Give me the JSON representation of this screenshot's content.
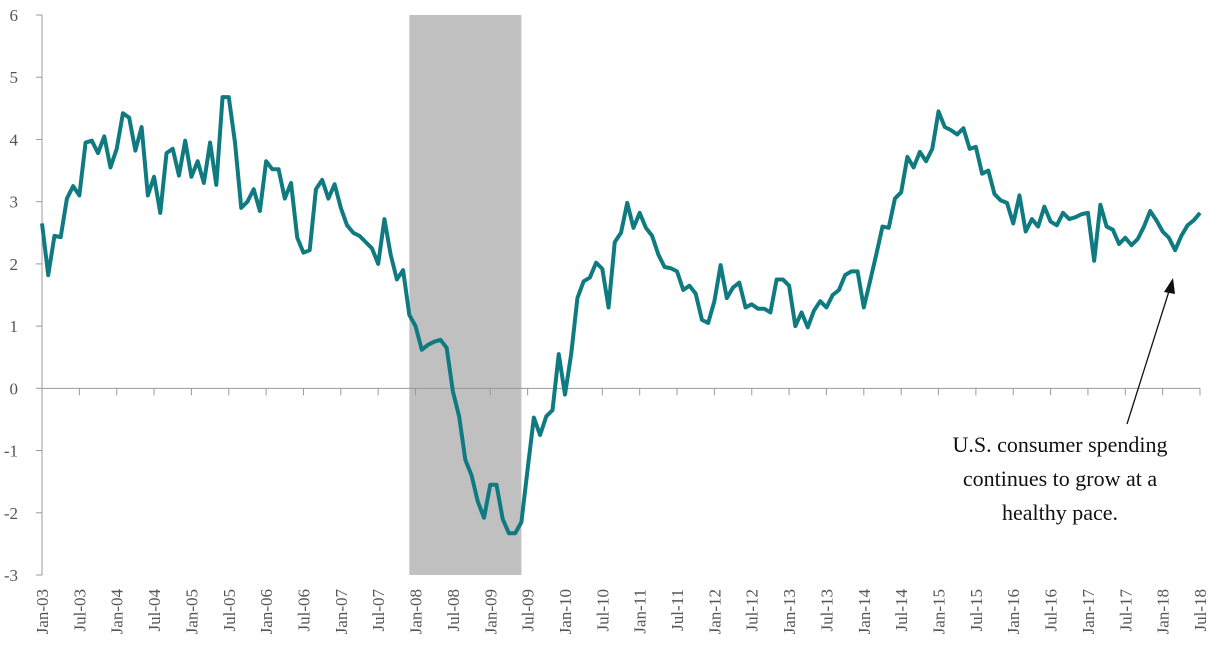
{
  "chart_data": {
    "type": "line",
    "categories": [
      "Jan-03",
      null,
      null,
      null,
      null,
      null,
      "Jul-03",
      null,
      null,
      null,
      null,
      null,
      "Jan-04",
      null,
      null,
      null,
      null,
      null,
      "Jul-04",
      null,
      null,
      null,
      null,
      null,
      "Jan-05",
      null,
      null,
      null,
      null,
      null,
      "Jul-05",
      null,
      null,
      null,
      null,
      null,
      "Jan-06",
      null,
      null,
      null,
      null,
      null,
      "Jul-06",
      null,
      null,
      null,
      null,
      null,
      "Jan-07",
      null,
      null,
      null,
      null,
      null,
      "Jul-07",
      null,
      null,
      null,
      null,
      null,
      "Jan-08",
      null,
      null,
      null,
      null,
      null,
      "Jul-08",
      null,
      null,
      null,
      null,
      null,
      "Jan-09",
      null,
      null,
      null,
      null,
      null,
      "Jul-09",
      null,
      null,
      null,
      null,
      null,
      "Jan-10",
      null,
      null,
      null,
      null,
      null,
      "Jul-10",
      null,
      null,
      null,
      null,
      null,
      "Jan-11",
      null,
      null,
      null,
      null,
      null,
      "Jul-11",
      null,
      null,
      null,
      null,
      null,
      "Jan-12",
      null,
      null,
      null,
      null,
      null,
      "Jul-12",
      null,
      null,
      null,
      null,
      null,
      "Jan-13",
      null,
      null,
      null,
      null,
      null,
      "Jul-13",
      null,
      null,
      null,
      null,
      null,
      "Jan-14",
      null,
      null,
      null,
      null,
      null,
      "Jul-14",
      null,
      null,
      null,
      null,
      null,
      "Jan-15",
      null,
      null,
      null,
      null,
      null,
      "Jul-15",
      null,
      null,
      null,
      null,
      null,
      "Jan-16",
      null,
      null,
      null,
      null,
      null,
      "Jul-16",
      null,
      null,
      null,
      null,
      null,
      "Jan-17",
      null,
      null,
      null,
      null,
      null,
      "Jul-17",
      null,
      null,
      null,
      null,
      null,
      "Jan-18",
      null,
      null,
      null,
      null,
      null,
      "Jul-18"
    ],
    "series": [
      {
        "color": "#0f7b80",
        "values": [
          2.65,
          1.82,
          2.45,
          2.43,
          3.05,
          3.25,
          3.1,
          3.95,
          3.98,
          3.78,
          4.05,
          3.55,
          3.85,
          4.42,
          4.35,
          3.82,
          4.2,
          3.1,
          3.4,
          2.82,
          3.78,
          3.85,
          3.42,
          3.98,
          3.4,
          3.65,
          3.3,
          3.95,
          3.27,
          4.68,
          4.68,
          3.95,
          2.9,
          3.0,
          3.2,
          2.85,
          3.65,
          3.52,
          3.52,
          3.05,
          3.3,
          2.42,
          2.18,
          2.22,
          3.2,
          3.35,
          3.05,
          3.28,
          2.9,
          2.62,
          2.5,
          2.45,
          2.35,
          2.25,
          2.0,
          2.72,
          2.15,
          1.75,
          1.9,
          1.18,
          1.0,
          0.62,
          0.7,
          0.75,
          0.78,
          0.65,
          -0.05,
          -0.45,
          -1.15,
          -1.4,
          -1.82,
          -2.08,
          -1.55,
          -1.55,
          -2.1,
          -2.33,
          -2.33,
          -2.15,
          -1.3,
          -0.47,
          -0.75,
          -0.45,
          -0.35,
          0.55,
          -0.1,
          0.55,
          1.45,
          1.72,
          1.78,
          2.02,
          1.92,
          1.3,
          2.35,
          2.5,
          2.98,
          2.58,
          2.82,
          2.58,
          2.45,
          2.15,
          1.95,
          1.93,
          1.88,
          1.58,
          1.65,
          1.52,
          1.1,
          1.05,
          1.4,
          1.98,
          1.45,
          1.62,
          1.7,
          1.3,
          1.35,
          1.28,
          1.28,
          1.22,
          1.75,
          1.75,
          1.65,
          1.0,
          1.22,
          0.98,
          1.25,
          1.4,
          1.3,
          1.5,
          1.58,
          1.82,
          1.88,
          1.88,
          1.3,
          1.72,
          2.15,
          2.6,
          2.58,
          3.05,
          3.15,
          3.72,
          3.55,
          3.8,
          3.65,
          3.85,
          4.45,
          4.2,
          4.15,
          4.08,
          4.18,
          3.85,
          3.88,
          3.45,
          3.5,
          3.12,
          3.02,
          2.98,
          2.65,
          3.1,
          2.52,
          2.72,
          2.6,
          2.92,
          2.68,
          2.62,
          2.82,
          2.72,
          2.75,
          2.8,
          2.82,
          2.05,
          2.95,
          2.6,
          2.55,
          2.32,
          2.42,
          2.3,
          2.4,
          2.6,
          2.85,
          2.7,
          2.52,
          2.42,
          2.22,
          2.45,
          2.62,
          2.7,
          2.82
        ]
      }
    ],
    "ylim": [
      -3,
      6
    ],
    "yticks": [
      -3,
      -2,
      -1,
      0,
      1,
      2,
      3,
      4,
      5,
      6
    ],
    "shaded_range": [
      59,
      77
    ],
    "shade_color": "#c0c0c0",
    "annotation": [
      "U.S. consumer spending",
      "continues to grow at a",
      "healthy pace."
    ]
  }
}
